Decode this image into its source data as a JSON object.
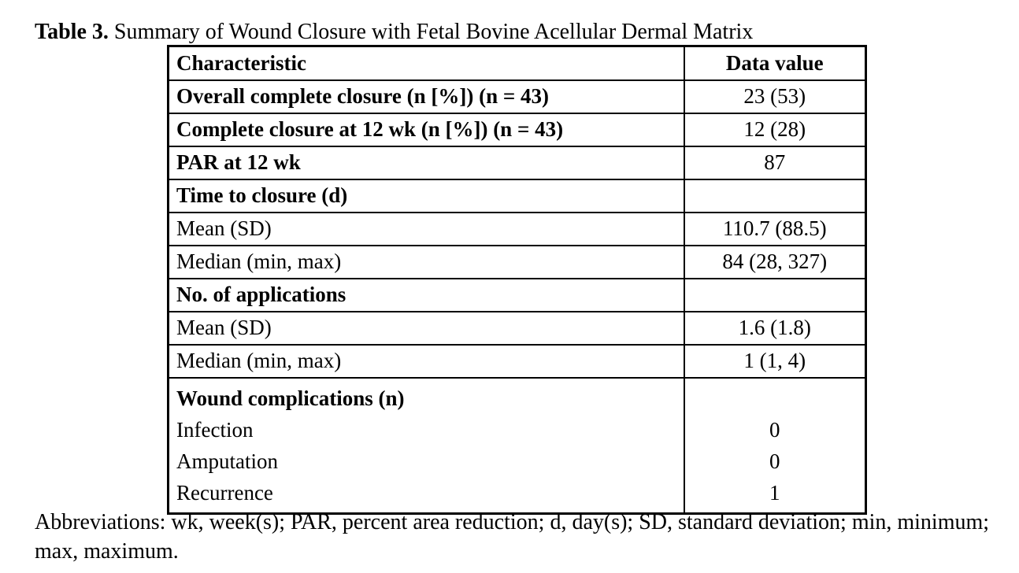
{
  "caption": {
    "label": "Table 3.",
    "text": " Summary of Wound Closure with Fetal Bovine Acellular Dermal Matrix"
  },
  "table": {
    "headers": [
      "Characteristic",
      "Data value"
    ],
    "rows": [
      {
        "label": "Overall complete closure (n [%]) (n = 43)",
        "value": "23 (53)",
        "bold": true
      },
      {
        "label": "Complete closure at 12 wk (n [%]) (n = 43)",
        "value": "12 (28)",
        "bold": true
      },
      {
        "label": "PAR at 12 wk",
        "value": "87",
        "bold": true
      },
      {
        "label": "Time to closure (d)",
        "value": "",
        "bold": true
      },
      {
        "label": "Mean (SD)",
        "value": "110.7 (88.5)",
        "bold": false
      },
      {
        "label": "Median (min, max)",
        "value": "84 (28, 327)",
        "bold": false
      },
      {
        "label": "No. of applications",
        "value": "",
        "bold": true
      },
      {
        "label": "Mean (SD)",
        "value": "1.6 (1.8)",
        "bold": false
      },
      {
        "label": "Median (min, max)",
        "value": "1 (1, 4)",
        "bold": false
      }
    ],
    "complications": {
      "header": "Wound complications (n)",
      "items": [
        {
          "label": "Infection",
          "value": "0"
        },
        {
          "label": "Amputation",
          "value": "0"
        },
        {
          "label": "Recurrence",
          "value": "1"
        }
      ]
    }
  },
  "footnote": "Abbreviations: wk, week(s); PAR, percent area reduction; d, day(s); SD, standard deviation; min, minimum; max, maximum."
}
